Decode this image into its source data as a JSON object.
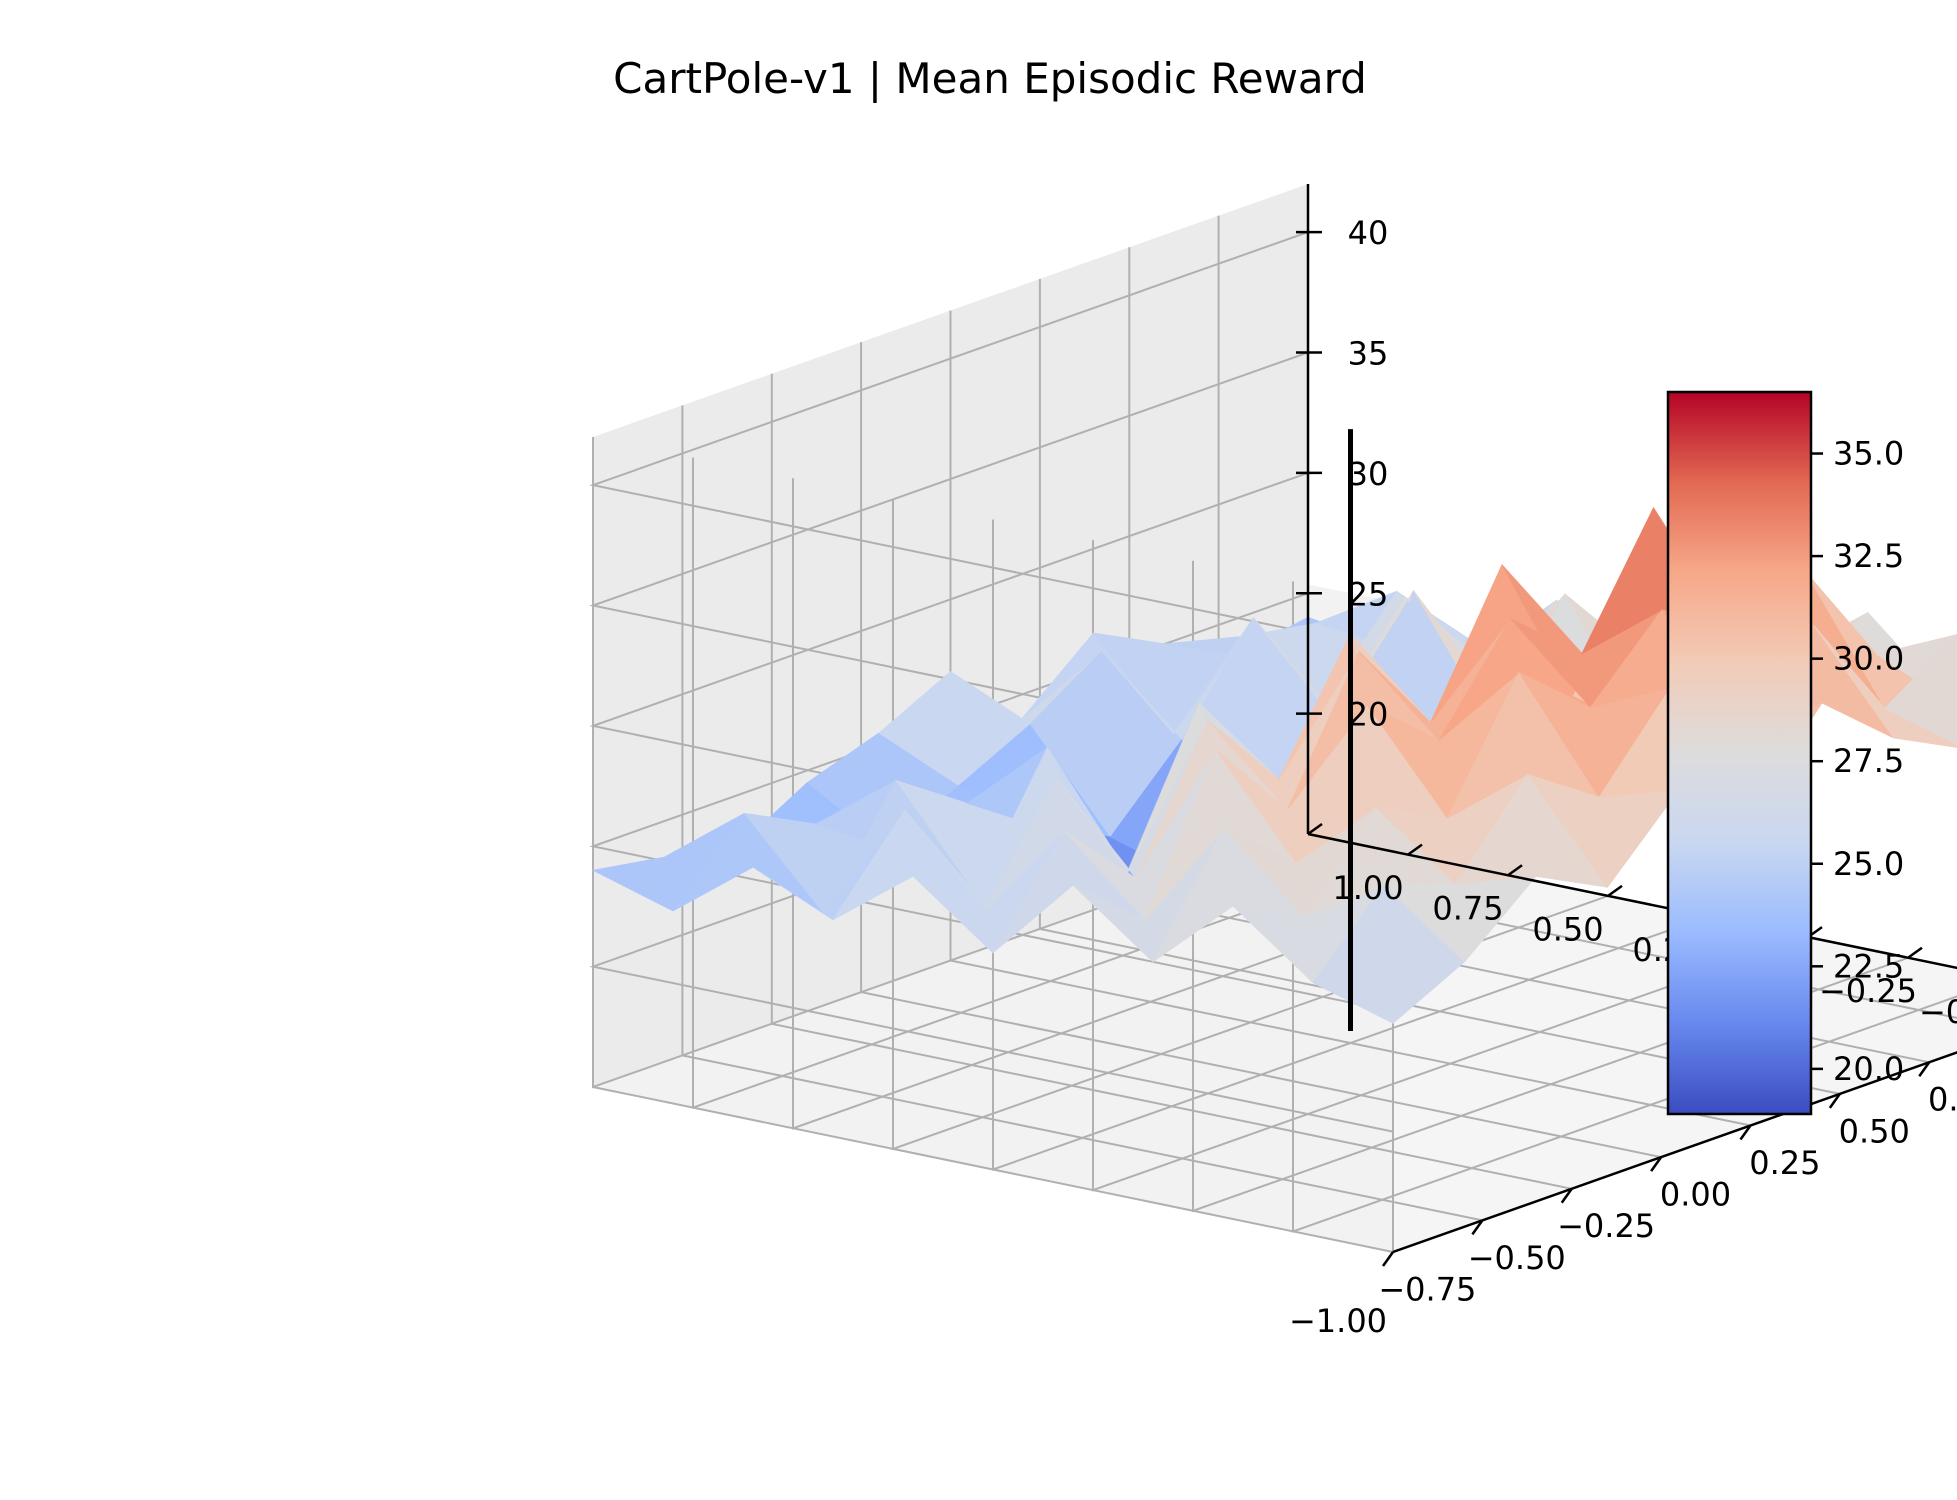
{
  "chart_data": {
    "type": "surface3d",
    "title": "CartPole-v1 | Mean Episodic Reward",
    "colormap": "coolwarm",
    "colormap_stops": [
      "#3b4cc0",
      "#6788ee",
      "#9abbff",
      "#c9d7f0",
      "#dddcdc",
      "#f2cbb7",
      "#f7a889",
      "#e26952",
      "#b40426"
    ],
    "x_ticks": [
      "−1.00",
      "−0.75",
      "−0.50",
      "−0.25",
      "0.00",
      "0.25",
      "0.50",
      "0.75",
      "1.00"
    ],
    "y_ticks": [
      "−1.00",
      "−0.75",
      "−0.50",
      "−0.25",
      "0.00",
      "0.25",
      "0.50",
      "0.75",
      "1.00"
    ],
    "z_ticks": [
      "20",
      "25",
      "30",
      "35",
      "40"
    ],
    "xlim": [
      -1.0,
      1.0
    ],
    "ylim": [
      -1.0,
      1.0
    ],
    "zlim": [
      15,
      42
    ],
    "colorbar": {
      "ticks": [
        "20.0",
        "22.5",
        "25.0",
        "27.5",
        "30.0",
        "32.5",
        "35.0"
      ],
      "range": [
        18.9,
        36.5
      ]
    },
    "surface": {
      "x": [
        -1.0,
        -0.8,
        -0.6,
        -0.4,
        -0.2,
        0.0,
        0.2,
        0.4,
        0.6,
        0.8,
        1.0
      ],
      "y": [
        -1.0,
        -0.8,
        -0.6,
        -0.4,
        -0.2,
        0.0,
        0.2,
        0.4,
        0.6,
        0.8,
        1.0
      ],
      "z": [
        [
          24.0,
          23.5,
          22.8,
          24.5,
          25.5,
          27.0,
          24.0,
          26.5,
          25.0,
          23.5,
          24.0
        ],
        [
          23.0,
          26.0,
          24.5,
          22.5,
          24.0,
          25.5,
          27.5,
          23.0,
          26.0,
          25.5,
          23.5
        ],
        [
          25.5,
          22.5,
          27.0,
          25.0,
          23.0,
          21.5,
          24.5,
          28.5,
          24.0,
          27.5,
          24.5
        ],
        [
          24.0,
          27.5,
          23.0,
          28.0,
          21.0,
          20.5,
          23.0,
          25.0,
          29.0,
          25.5,
          26.0
        ],
        [
          26.5,
          24.0,
          28.5,
          23.5,
          29.5,
          20.0,
          21.5,
          31.0,
          26.0,
          28.5,
          24.5
        ],
        [
          24.0,
          28.0,
          25.0,
          30.5,
          27.0,
          32.0,
          22.0,
          26.0,
          30.5,
          27.0,
          28.0
        ],
        [
          27.5,
          25.0,
          31.0,
          27.5,
          33.0,
          29.0,
          34.5,
          28.0,
          25.5,
          30.0,
          26.5
        ],
        [
          25.0,
          29.5,
          27.0,
          32.5,
          30.0,
          34.0,
          31.5,
          36.5,
          30.5,
          27.5,
          29.0
        ],
        [
          28.0,
          26.5,
          30.0,
          28.5,
          33.5,
          31.0,
          34.0,
          32.0,
          33.5,
          29.0,
          26.0
        ],
        [
          25.5,
          28.5,
          27.5,
          31.0,
          29.0,
          32.5,
          30.0,
          33.0,
          28.5,
          30.5,
          27.0
        ],
        [
          24.5,
          26.0,
          28.5,
          27.0,
          30.0,
          28.0,
          31.5,
          29.0,
          27.5,
          26.5,
          25.5
        ]
      ]
    },
    "line3d": {
      "x": 0.0,
      "y": 0.0,
      "z": [
        15.5,
        40.5
      ],
      "color": "#000000"
    }
  }
}
